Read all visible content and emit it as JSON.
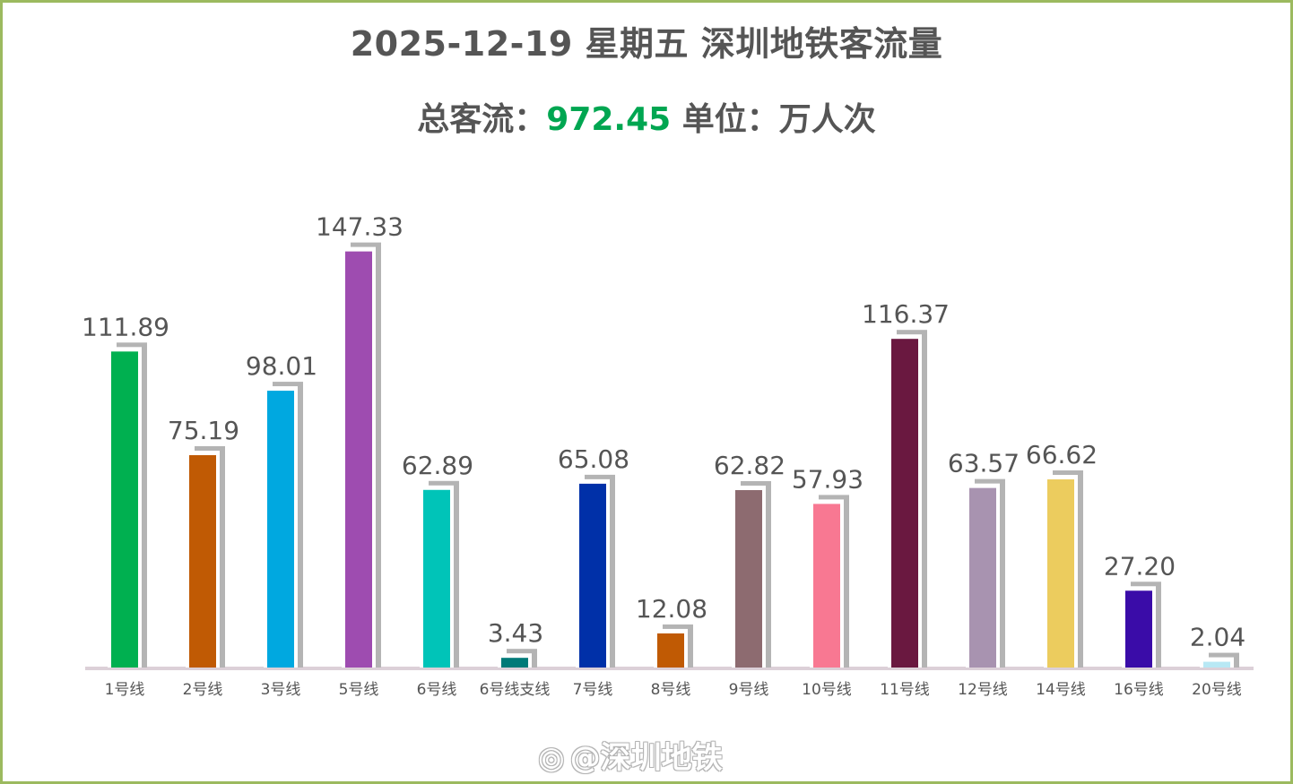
{
  "header": {
    "title": "2025-12-19 星期五 深圳地铁客流量",
    "total_label": "总客流：",
    "total_value": "972.45",
    "unit_label": " 单位：万人次"
  },
  "watermark": "@深圳地铁",
  "colors": {
    "frame": "#9cba5f",
    "total": "#00a651",
    "shadow": "#b4b4b4",
    "axis": "#dcd0d8",
    "label": "#555555"
  },
  "chart_data": {
    "type": "bar",
    "title": "2025-12-19 星期五 深圳地铁客流量",
    "ylabel": "万人次",
    "xlabel": "",
    "ylim": [
      0,
      150
    ],
    "grid": false,
    "categories": [
      "1号线",
      "2号线",
      "3号线",
      "5号线",
      "6号线",
      "6号线支线",
      "7号线",
      "8号线",
      "9号线",
      "10号线",
      "11号线",
      "12号线",
      "14号线",
      "16号线",
      "20号线"
    ],
    "values": [
      111.89,
      75.19,
      98.01,
      147.33,
      62.89,
      3.43,
      65.08,
      12.08,
      62.82,
      57.93,
      116.37,
      63.57,
      66.62,
      27.2,
      2.04
    ],
    "value_labels": [
      "111.89",
      "75.19",
      "98.01",
      "147.33",
      "62.89",
      "3.43",
      "65.08",
      "12.08",
      "62.82",
      "57.93",
      "116.37",
      "63.57",
      "66.62",
      "27.20",
      "2.04"
    ],
    "bar_colors": [
      "#00b050",
      "#c05a04",
      "#00a8e0",
      "#9e4cb0",
      "#00c4b8",
      "#007a78",
      "#0030a8",
      "#c05a04",
      "#8d6b70",
      "#f87892",
      "#6a1840",
      "#a893b0",
      "#eccc5e",
      "#3a0ca8",
      "#b8e8f4"
    ]
  }
}
